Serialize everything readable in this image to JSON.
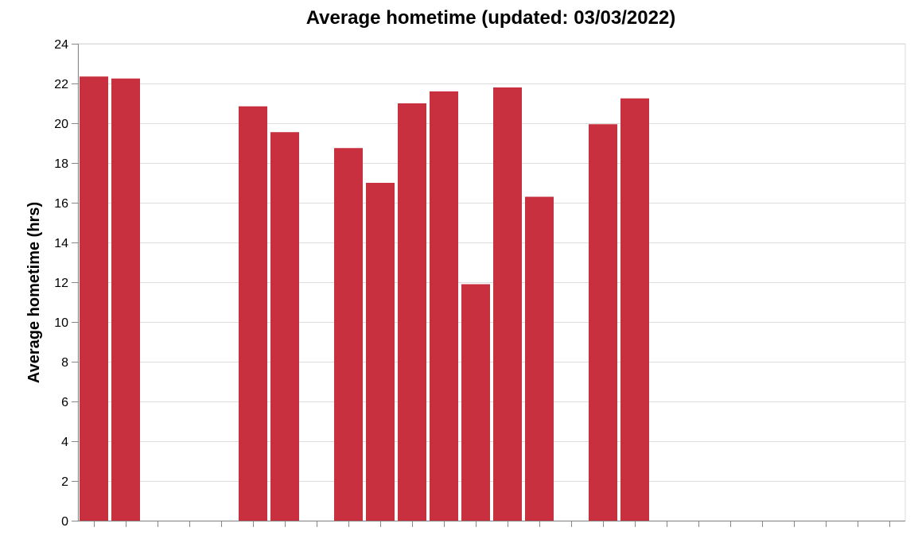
{
  "chart_data": {
    "type": "bar",
    "title": "Average hometime (updated: 03/03/2022)",
    "xlabel": "",
    "ylabel": "Average hometime (hrs)",
    "ylim": [
      0,
      24
    ],
    "y_ticks": [
      0,
      2,
      4,
      6,
      8,
      10,
      12,
      14,
      16,
      18,
      20,
      22,
      24
    ],
    "grid": true,
    "x_tick_labels_visible": false,
    "bar_color": "#c9303f",
    "num_slots": 26,
    "values": [
      22.35,
      22.25,
      null,
      null,
      null,
      20.85,
      19.55,
      null,
      18.75,
      17.0,
      21.0,
      21.6,
      11.9,
      21.8,
      16.3,
      null,
      19.95,
      21.25,
      null,
      null,
      null,
      null,
      null,
      null,
      null,
      null
    ]
  }
}
